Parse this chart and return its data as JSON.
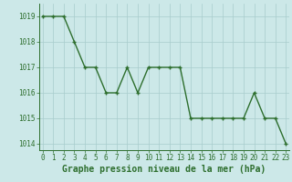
{
  "x": [
    0,
    1,
    2,
    3,
    4,
    5,
    6,
    7,
    8,
    9,
    10,
    11,
    12,
    13,
    14,
    15,
    16,
    17,
    18,
    19,
    20,
    21,
    22,
    23
  ],
  "y": [
    1019,
    1019,
    1019,
    1018,
    1017,
    1017,
    1016,
    1016,
    1017,
    1016,
    1017,
    1017,
    1017,
    1017,
    1015,
    1015,
    1015,
    1015,
    1015,
    1015,
    1016,
    1015,
    1015,
    1014
  ],
  "line_color": "#2d6e2d",
  "marker": "+",
  "marker_size": 3,
  "marker_linewidth": 1.0,
  "line_width": 1.0,
  "background_color": "#cce8e8",
  "grid_color": "#a8cccc",
  "ylim_min": 1013.75,
  "ylim_max": 1019.5,
  "yticks": [
    1014,
    1015,
    1016,
    1017,
    1018,
    1019
  ],
  "xticks": [
    0,
    1,
    2,
    3,
    4,
    5,
    6,
    7,
    8,
    9,
    10,
    11,
    12,
    13,
    14,
    15,
    16,
    17,
    18,
    19,
    20,
    21,
    22,
    23
  ],
  "xlabel": "Graphe pression niveau de la mer (hPa)",
  "xlabel_fontsize": 7,
  "tick_fontsize": 5.5,
  "tick_color": "#2d6e2d",
  "label_color": "#2d6e2d",
  "spine_color": "#2d6e2d",
  "xlim_min": -0.3,
  "xlim_max": 23.3
}
